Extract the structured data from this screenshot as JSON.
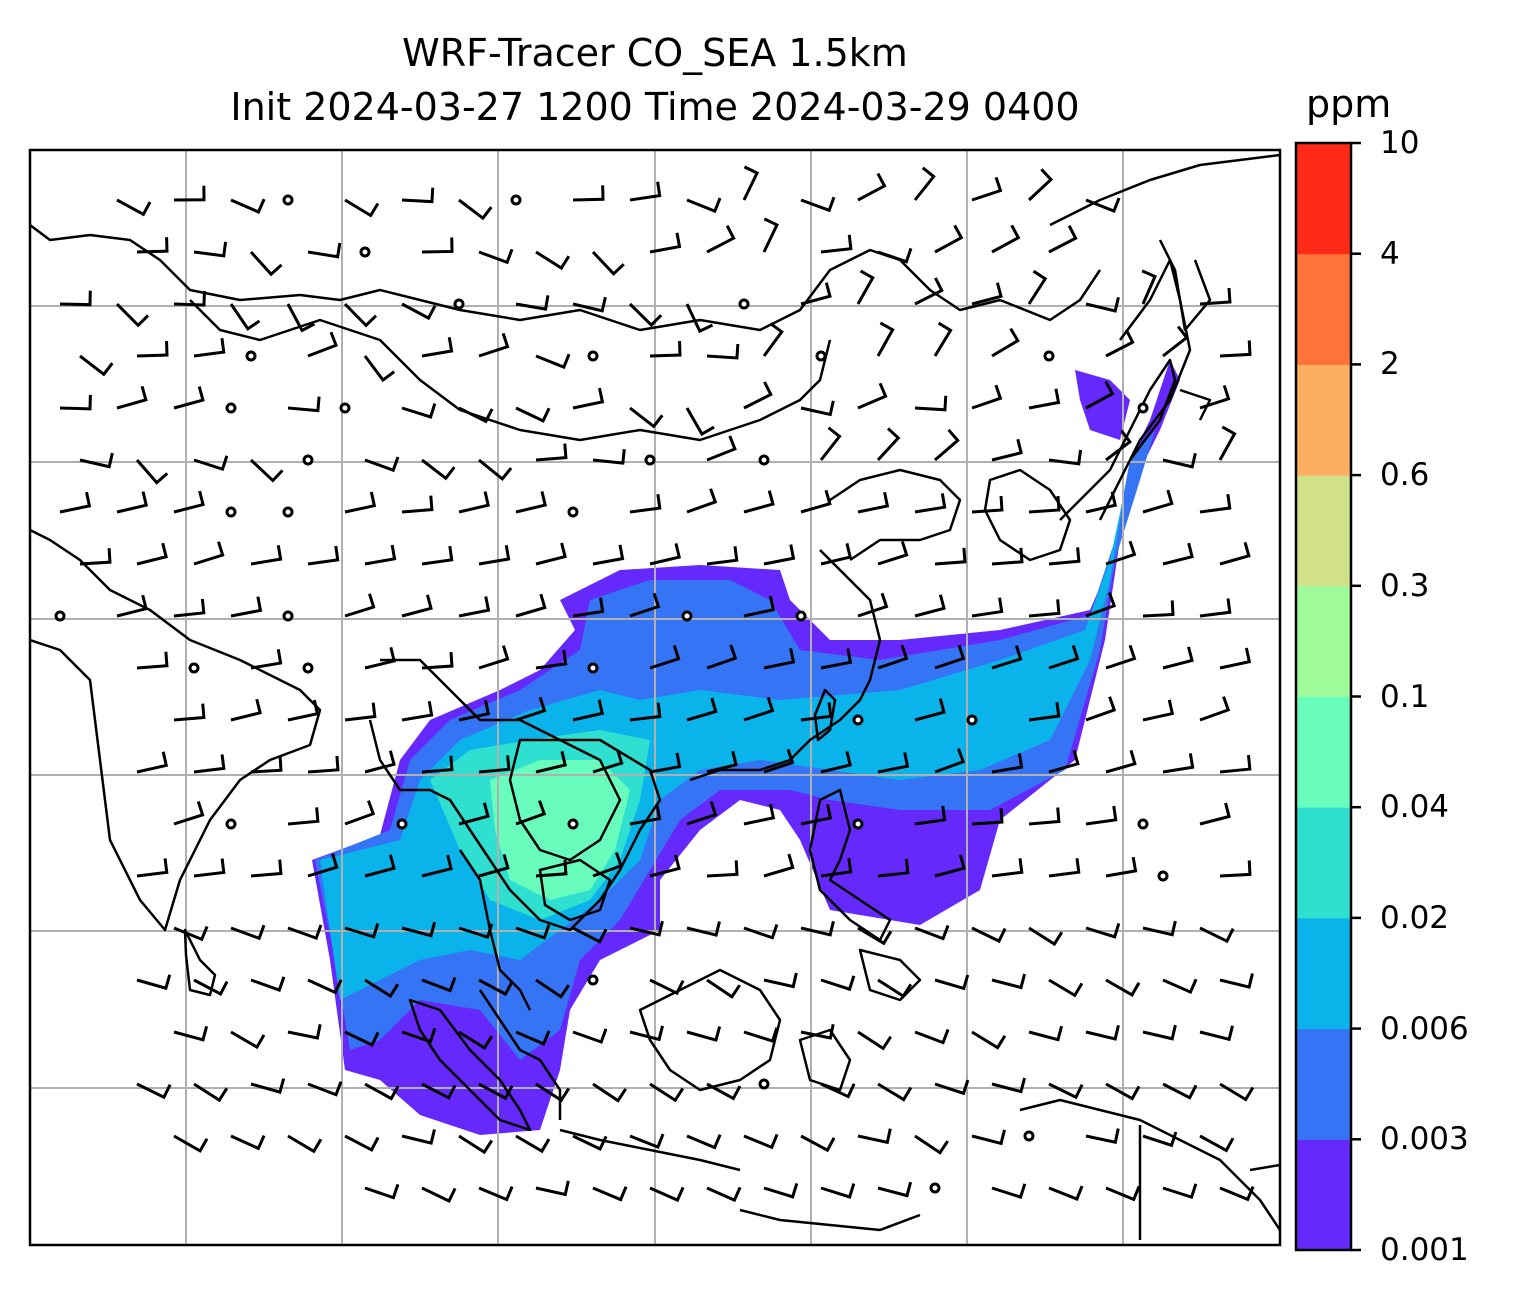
{
  "title_line1": "WRF-Tracer CO_SEA 1.5km",
  "title_line2": "Init 2024-03-27 1200 Time 2024-03-29 0400",
  "colorbar": {
    "unit": "ppm",
    "levels": [
      "0.001",
      "0.003",
      "0.006",
      "0.02",
      "0.04",
      "0.1",
      "0.3",
      "0.6",
      "2",
      "4",
      "10"
    ],
    "colors": [
      "#6629fc",
      "#3574f5",
      "#0bb3eb",
      "#2fe0d0",
      "#68fcbd",
      "#9ffa9a",
      "#d0e188",
      "#fcae61",
      "#fe7339",
      "#ff2a18"
    ]
  },
  "map": {
    "grid_lines": "on",
    "tracer_colors": {
      "outer": "#6629fc",
      "band": "#3574f5",
      "core": "#0bb3eb",
      "peak": "#2fe0d0",
      "max": "#68fcbd"
    },
    "wind_barbs": "black",
    "coastline_color": "#000000"
  }
}
